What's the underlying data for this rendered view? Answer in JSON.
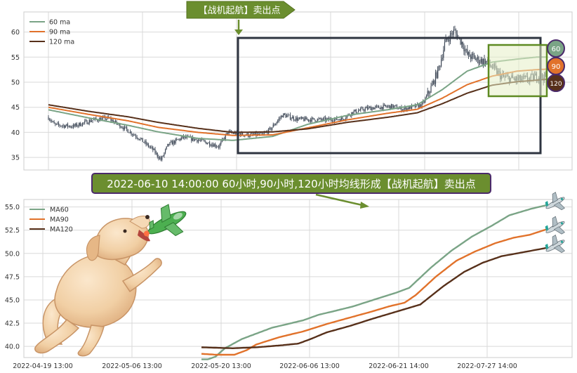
{
  "colors": {
    "ma60": "#7aa486",
    "ma90": "#e1722b",
    "ma120": "#57301a",
    "candle": "#3d4756",
    "grid": "#d9d9d9",
    "frame": "#2e3440",
    "callout_fill": "#6b8e2f",
    "callout_border": "#4b2a6b",
    "callout_text": "#ffffff",
    "zone_border": "#5e8a22",
    "zone_fill": "#eef3d6"
  },
  "signal_tag": "【战机起航】卖出点",
  "callout_text": "2022-06-10 14:00:00 60小时,90小时,120小时均线形成【战机起航】卖出点",
  "badges": [
    "60",
    "90",
    "120"
  ],
  "icons": {
    "arrow": "down-arrow-icon",
    "jet": "jet-plane-icon",
    "dog": "puppy-illustration",
    "toy": "toy-plane-icon"
  },
  "chart_data": [
    {
      "type": "line",
      "title": "",
      "legend": {
        "position": "top-left",
        "entries": [
          "60 ma",
          "90 ma",
          "120 ma"
        ]
      },
      "grid": true,
      "ylim": [
        32.5,
        64
      ],
      "y_ticks": [
        35,
        40,
        45,
        50,
        55,
        60
      ],
      "n_points": 440,
      "series": [
        {
          "name": "price",
          "style": "candles",
          "keypoints": [
            [
              0,
              43
            ],
            [
              6,
              41.5
            ],
            [
              25,
              41.2
            ],
            [
              45,
              42.5
            ],
            [
              60,
              42.8
            ],
            [
              75,
              41
            ],
            [
              90,
              39
            ],
            [
              105,
              36.5
            ],
            [
              113,
              34.5
            ],
            [
              120,
              37.5
            ],
            [
              135,
              39
            ],
            [
              150,
              38.5
            ],
            [
              165,
              37.6
            ],
            [
              171,
              37.2
            ],
            [
              180,
              40
            ],
            [
              200,
              39.5
            ],
            [
              215,
              39.5
            ],
            [
              222,
              40.5
            ],
            [
              235,
              43.5
            ],
            [
              250,
              42.6
            ],
            [
              280,
              42.5
            ],
            [
              295,
              42.7
            ],
            [
              305,
              44
            ],
            [
              320,
              44.8
            ],
            [
              345,
              45.2
            ],
            [
              355,
              44.6
            ],
            [
              375,
              45.5
            ],
            [
              385,
              49.3
            ],
            [
              392,
              53
            ],
            [
              398,
              58
            ],
            [
              407,
              60.2
            ],
            [
              415,
              57.8
            ],
            [
              420,
              55.5
            ],
            [
              430,
              54.5
            ],
            [
              440,
              54
            ],
            [
              455,
              51
            ],
            [
              470,
              50.5
            ],
            [
              482,
              50.6
            ],
            [
              490,
              51.2
            ],
            [
              500,
              51
            ]
          ]
        },
        {
          "name": "60 ma",
          "keypoints": [
            [
              0,
              44.5
            ],
            [
              40,
              42.9
            ],
            [
              80,
              41.4
            ],
            [
              110,
              40.1
            ],
            [
              150,
              38.8
            ],
            [
              185,
              38.4
            ],
            [
              225,
              39.2
            ],
            [
              260,
              41.6
            ],
            [
              300,
              43.4
            ],
            [
              340,
              44.5
            ],
            [
              370,
              45.5
            ],
            [
              395,
              48.5
            ],
            [
              420,
              52.2
            ],
            [
              445,
              54
            ],
            [
              470,
              54.6
            ],
            [
              490,
              55
            ],
            [
              500,
              55
            ]
          ]
        },
        {
          "name": "90 ma",
          "keypoints": [
            [
              0,
              45
            ],
            [
              40,
              43.6
            ],
            [
              80,
              42.3
            ],
            [
              110,
              41
            ],
            [
              150,
              40
            ],
            [
              185,
              39.4
            ],
            [
              225,
              39.5
            ],
            [
              260,
              40.9
            ],
            [
              300,
              42.5
            ],
            [
              340,
              43.8
            ],
            [
              370,
              44.6
            ],
            [
              395,
              46.8
            ],
            [
              420,
              49.5
            ],
            [
              445,
              51.2
            ],
            [
              470,
              52.2
            ],
            [
              490,
              52.5
            ],
            [
              500,
              52.6
            ]
          ]
        },
        {
          "name": "120 ma",
          "keypoints": [
            [
              0,
              45.5
            ],
            [
              40,
              44.2
            ],
            [
              80,
              43.1
            ],
            [
              110,
              42
            ],
            [
              150,
              40.8
            ],
            [
              185,
              40
            ],
            [
              225,
              40.1
            ],
            [
              260,
              40.7
            ],
            [
              300,
              42
            ],
            [
              340,
              43
            ],
            [
              370,
              43.9
            ],
            [
              395,
              45.7
            ],
            [
              420,
              47.8
            ],
            [
              445,
              49.4
            ],
            [
              470,
              50.1
            ],
            [
              490,
              50.4
            ],
            [
              500,
              50.6
            ]
          ]
        }
      ]
    },
    {
      "type": "line",
      "title": "",
      "legend": {
        "position": "top-left",
        "entries": [
          "MA60",
          "MA90",
          "MA120"
        ]
      },
      "grid": true,
      "ylim": [
        38.8,
        55.8
      ],
      "y_ticks": [
        40.0,
        42.5,
        45.0,
        47.5,
        50.0,
        52.5,
        55.0
      ],
      "x_ticks": [
        "2022-04-19 13:00",
        "2022-05-06 13:00",
        "2022-05-20 13:00",
        "2022-06-06 13:00",
        "2022-06-21 14:00",
        "2022-07-27 14:00"
      ],
      "n_points": 440,
      "series": [
        {
          "name": "MA60",
          "x_start": 219,
          "keypoints": [
            [
              0,
              38.6
            ],
            [
              4,
              38.6
            ],
            [
              9,
              38.9
            ],
            [
              15,
              39.8
            ],
            [
              26,
              40.8
            ],
            [
              45,
              42
            ],
            [
              65,
              42.8
            ],
            [
              75,
              43.4
            ],
            [
              85,
              43.8
            ],
            [
              97,
              44.3
            ],
            [
              110,
              45
            ],
            [
              125,
              45.8
            ],
            [
              133,
              46.3
            ],
            [
              147,
              48.5
            ],
            [
              160,
              50.3
            ],
            [
              173,
              51.8
            ],
            [
              186,
              53
            ],
            [
              197,
              54.1
            ],
            [
              211,
              54.8
            ],
            [
              221,
              55.2
            ]
          ]
        },
        {
          "name": "MA90",
          "x_start": 219,
          "keypoints": [
            [
              0,
              39.2
            ],
            [
              10,
              39.1
            ],
            [
              21,
              39.1
            ],
            [
              29,
              39.6
            ],
            [
              35,
              40.2
            ],
            [
              50,
              41
            ],
            [
              65,
              41.6
            ],
            [
              80,
              42.4
            ],
            [
              95,
              43.1
            ],
            [
              108,
              43.7
            ],
            [
              120,
              44.3
            ],
            [
              130,
              44.7
            ],
            [
              137,
              45.5
            ],
            [
              150,
              47.5
            ],
            [
              163,
              49.2
            ],
            [
              175,
              50.2
            ],
            [
              188,
              51.1
            ],
            [
              200,
              51.7
            ],
            [
              210,
              52
            ],
            [
              221,
              52.6
            ]
          ]
        },
        {
          "name": "MA120",
          "x_start": 219,
          "keypoints": [
            [
              0,
              39.9
            ],
            [
              20,
              39.8
            ],
            [
              35,
              39.9
            ],
            [
              50,
              40.1
            ],
            [
              62,
              40.3
            ],
            [
              70,
              40.8
            ],
            [
              80,
              41.5
            ],
            [
              95,
              42.2
            ],
            [
              110,
              43
            ],
            [
              120,
              43.5
            ],
            [
              130,
              44
            ],
            [
              140,
              44.5
            ],
            [
              155,
              46.5
            ],
            [
              168,
              48
            ],
            [
              180,
              49
            ],
            [
              192,
              49.7
            ],
            [
              205,
              50.1
            ],
            [
              221,
              50.6
            ]
          ]
        }
      ]
    }
  ]
}
